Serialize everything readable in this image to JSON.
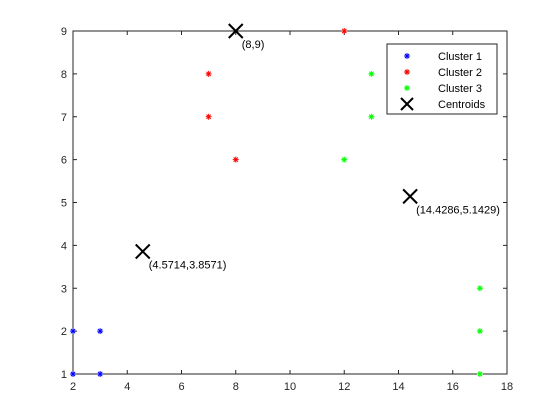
{
  "chart_data": {
    "type": "scatter",
    "title": "",
    "xlabel": "",
    "ylabel": "",
    "xlim": [
      2,
      18
    ],
    "ylim": [
      1,
      9
    ],
    "xticks": [
      2,
      4,
      6,
      8,
      10,
      12,
      14,
      16,
      18
    ],
    "yticks": [
      1,
      2,
      3,
      4,
      5,
      6,
      7,
      8,
      9
    ],
    "grid": false,
    "legend_position": "top-right",
    "series": [
      {
        "name": "Cluster 1",
        "color": "#0000ff",
        "marker": "asterisk",
        "points": [
          [
            2,
            1
          ],
          [
            2,
            2
          ],
          [
            3,
            1
          ],
          [
            3,
            2
          ]
        ]
      },
      {
        "name": "Cluster 2",
        "color": "#ff0000",
        "marker": "asterisk",
        "points": [
          [
            7,
            7
          ],
          [
            7,
            8
          ],
          [
            8,
            6
          ],
          [
            12,
            9
          ]
        ]
      },
      {
        "name": "Cluster 3",
        "color": "#00ff00",
        "marker": "asterisk",
        "points": [
          [
            12,
            6
          ],
          [
            13,
            7
          ],
          [
            13,
            8
          ],
          [
            17,
            1
          ],
          [
            17,
            2
          ],
          [
            17,
            3
          ]
        ]
      },
      {
        "name": "Centroids",
        "color": "#000000",
        "marker": "x",
        "points": [
          [
            4.5714,
            3.8571
          ],
          [
            8,
            9
          ],
          [
            14.4286,
            5.1429
          ]
        ]
      }
    ],
    "annotations": [
      {
        "text": "(4.5714,3.8571)",
        "x": 4.5714,
        "y": 3.8571
      },
      {
        "text": "(8,9)",
        "x": 8,
        "y": 9
      },
      {
        "text": "(14.4286,5.1429)",
        "x": 14.4286,
        "y": 5.1429
      }
    ]
  }
}
